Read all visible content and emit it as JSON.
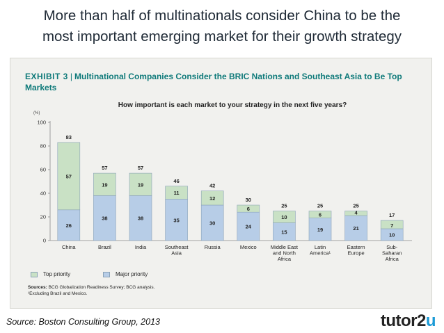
{
  "slide": {
    "title_line1": "More than half of multinationals consider China to be the",
    "title_line2": "most important emerging market for their growth strategy"
  },
  "exhibit": {
    "label": "EXHIBIT 3",
    "separator": "|",
    "title_line1": "Multinational Companies Consider the BRIC Nations and Southeast Asia to Be Top",
    "title_line2": "Markets",
    "question": "How important is each market to your strategy in the next five years?",
    "unit_label": "(%)",
    "sources_label": "Sources:",
    "sources_text": "BCG Globalization Readiness Survey; BCG analysis.",
    "footnote": "¹Excluding Brazil and Mexico."
  },
  "footer": {
    "source": "Source: Boston Consulting Group, 2013",
    "logo_main": "tutor2",
    "logo_accent": "u"
  },
  "colors": {
    "top_priority": "#c9e1c5",
    "major_priority": "#b7cde7",
    "bar_outline": "#8aa2b8",
    "teal": "#0f7a7a"
  },
  "chart_data": {
    "type": "bar",
    "stacked": true,
    "title": "How important is each market to your strategy in the next five years?",
    "ylabel": "(%)",
    "ylim": [
      0,
      100
    ],
    "yticks": [
      0,
      20,
      40,
      60,
      80,
      100
    ],
    "categories": [
      [
        "China"
      ],
      [
        "Brazil"
      ],
      [
        "India"
      ],
      [
        "Southeast",
        "Asia"
      ],
      [
        "Russia"
      ],
      [
        "Mexico"
      ],
      [
        "Middle East",
        "and North",
        "Africa"
      ],
      [
        "Latin",
        "America¹"
      ],
      [
        "Eastern",
        "Europe"
      ],
      [
        "Sub-",
        "Saharan",
        "Africa"
      ]
    ],
    "series": [
      {
        "name": "Major priority",
        "values": [
          26,
          38,
          38,
          35,
          30,
          24,
          15,
          19,
          21,
          10
        ]
      },
      {
        "name": "Top priority",
        "values": [
          57,
          19,
          19,
          11,
          12,
          6,
          10,
          6,
          4,
          7
        ]
      }
    ],
    "totals": [
      83,
      57,
      57,
      46,
      42,
      30,
      25,
      25,
      25,
      17
    ],
    "legend": [
      "Top priority",
      "Major priority"
    ]
  }
}
